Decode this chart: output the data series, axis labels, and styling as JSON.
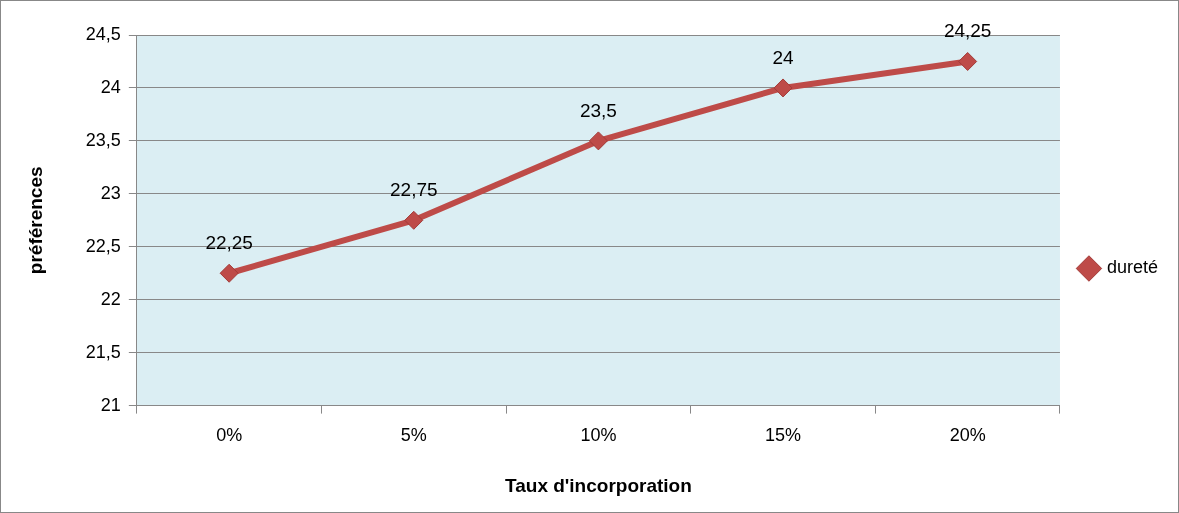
{
  "chart_data": {
    "type": "line",
    "xlabel": "Taux d'incorporation",
    "ylabel": "préférences",
    "categories": [
      "0%",
      "5%",
      "10%",
      "15%",
      "20%"
    ],
    "series": [
      {
        "name": "dureté",
        "color": "#be4b48",
        "values": [
          22.25,
          22.75,
          23.5,
          24,
          24.25
        ],
        "value_labels": [
          "22,25",
          "22,75",
          "23,5",
          "24",
          "24,25"
        ]
      }
    ],
    "ylim": [
      21,
      24.5
    ],
    "yticks": [
      21,
      {
        "value": 21.5,
        "label": "21,5"
      },
      22,
      {
        "value": 22.5,
        "label": "22,5"
      },
      23,
      {
        "value": 23.5,
        "label": "23,5"
      },
      24,
      {
        "value": 24.5,
        "label": "24,5"
      }
    ],
    "grid": "y",
    "legend": "right",
    "marker": "diamond",
    "line_style": "solid"
  }
}
